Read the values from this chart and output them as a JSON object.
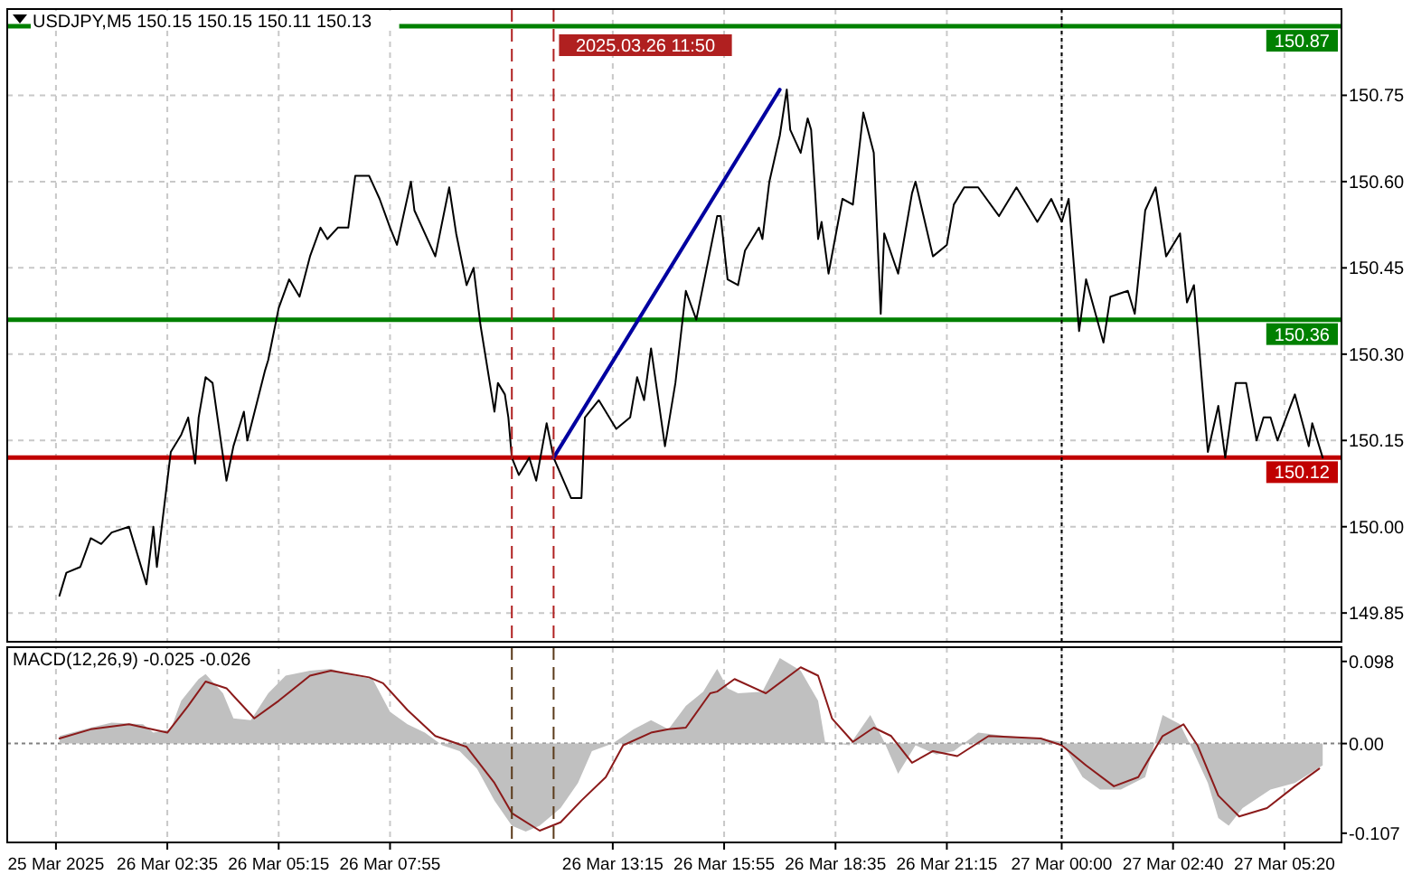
{
  "chart_data": [
    {
      "type": "line",
      "title": "USDJPY,M5 150.15 150.15 150.11 150.13",
      "xlim": [
        "2025-03-25T22:45",
        "2025-03-27T06:42"
      ],
      "ylim": [
        149.8,
        150.9
      ],
      "xticks": [
        {
          "value": "2025-03-25T23:55",
          "label": null
        },
        {
          "value": "2025-03-26T02:35",
          "label": null
        },
        {
          "value": "2025-03-26T05:15",
          "label": null
        },
        {
          "value": "2025-03-26T07:55",
          "label": null
        },
        {
          "value": "2025-03-26T13:15",
          "label": null
        },
        {
          "value": "2025-03-26T15:55",
          "label": null
        },
        {
          "value": "2025-03-26T18:35",
          "label": null
        },
        {
          "value": "2025-03-26T21:15",
          "label": null
        },
        {
          "value": "2025-03-27T00:00",
          "label": null
        },
        {
          "value": "2025-03-27T02:40",
          "label": null
        },
        {
          "value": "2025-03-27T05:20",
          "label": null
        }
      ],
      "yticks": [
        149.85,
        {
          "value": 150,
          "label": "150.00"
        },
        150.15,
        {
          "value": 150.3,
          "label": "150.30"
        },
        150.45,
        {
          "value": 150.6,
          "label": "150.60"
        },
        150.75
      ],
      "tick_labels": "y",
      "grid": true,
      "series": [
        {
          "color": "#000000",
          "x": [
            "2025-03-26T00:00",
            "2025-03-26T00:10",
            "2025-03-26T00:30",
            "2025-03-26T00:45",
            "2025-03-26T01:00",
            "2025-03-26T01:15",
            "2025-03-26T01:40",
            "2025-03-26T02:05",
            "2025-03-26T02:15",
            "2025-03-26T02:20",
            "2025-03-26T02:40",
            "2025-03-26T02:55",
            "2025-03-26T03:05",
            "2025-03-26T03:15",
            "2025-03-26T03:20",
            "2025-03-26T03:30",
            "2025-03-26T03:40",
            "2025-03-26T04:00",
            "2025-03-26T04:10",
            "2025-03-26T04:25",
            "2025-03-26T04:30",
            "2025-03-26T04:55",
            "2025-03-26T05:00",
            "2025-03-26T05:15",
            "2025-03-26T05:30",
            "2025-03-26T05:45",
            "2025-03-26T06:00",
            "2025-03-26T06:15",
            "2025-03-26T06:25",
            "2025-03-26T06:40",
            "2025-03-26T06:55",
            "2025-03-26T07:05",
            "2025-03-26T07:25",
            "2025-03-26T07:40",
            "2025-03-26T07:55",
            "2025-03-26T08:05",
            "2025-03-26T08:25",
            "2025-03-26T08:30",
            "2025-03-26T09:00",
            "2025-03-26T09:20",
            "2025-03-26T09:30",
            "2025-03-26T09:45",
            "2025-03-26T09:55",
            "2025-03-26T10:05",
            "2025-03-26T10:25",
            "2025-03-26T10:30",
            "2025-03-26T10:40",
            "2025-03-26T10:45",
            "2025-03-26T10:50",
            "2025-03-26T11:00",
            "2025-03-26T11:15",
            "2025-03-26T11:25",
            "2025-03-26T11:40",
            "2025-03-26T11:50",
            "2025-03-26T12:15",
            "2025-03-26T12:30",
            "2025-03-26T12:35",
            "2025-03-26T12:55",
            "2025-03-26T13:20",
            "2025-03-26T13:40",
            "2025-03-26T13:50",
            "2025-03-26T14:00",
            "2025-03-26T14:10",
            "2025-03-26T14:30",
            "2025-03-26T14:45",
            "2025-03-26T15:00",
            "2025-03-26T15:15",
            "2025-03-26T15:45",
            "2025-03-26T15:50",
            "2025-03-26T16:00",
            "2025-03-26T16:15",
            "2025-03-26T16:25",
            "2025-03-26T16:45",
            "2025-03-26T16:50",
            "2025-03-26T17:00",
            "2025-03-26T17:15",
            "2025-03-26T17:25",
            "2025-03-26T17:30",
            "2025-03-26T17:45",
            "2025-03-26T17:55",
            "2025-03-26T18:00",
            "2025-03-26T18:10",
            "2025-03-26T18:15",
            "2025-03-26T18:25",
            "2025-03-26T18:45",
            "2025-03-26T19:00",
            "2025-03-26T19:15",
            "2025-03-26T19:30",
            "2025-03-26T19:40",
            "2025-03-26T19:45",
            "2025-03-26T20:05",
            "2025-03-26T20:25",
            "2025-03-26T20:30",
            "2025-03-26T20:55",
            "2025-03-26T21:15",
            "2025-03-26T21:25",
            "2025-03-26T21:40",
            "2025-03-26T22:00",
            "2025-03-26T22:30",
            "2025-03-26T22:55",
            "2025-03-26T23:25",
            "2025-03-26T23:45",
            "2025-03-27T00:00",
            "2025-03-27T00:10",
            "2025-03-27T00:25",
            "2025-03-27T00:35",
            "2025-03-27T01:00",
            "2025-03-27T01:10",
            "2025-03-27T01:35",
            "2025-03-27T01:45",
            "2025-03-27T02:00",
            "2025-03-27T02:15",
            "2025-03-27T02:30",
            "2025-03-27T02:50",
            "2025-03-27T03:00",
            "2025-03-27T03:10",
            "2025-03-27T03:30",
            "2025-03-27T03:45",
            "2025-03-27T03:55",
            "2025-03-27T04:10",
            "2025-03-27T04:25",
            "2025-03-27T04:40",
            "2025-03-27T04:50",
            "2025-03-27T05:00",
            "2025-03-27T05:10",
            "2025-03-27T05:35",
            "2025-03-27T05:55",
            "2025-03-27T06:00",
            "2025-03-27T06:15"
          ],
          "values": [
            149.88,
            149.92,
            149.93,
            149.98,
            149.97,
            149.99,
            150.0,
            149.9,
            150.0,
            149.93,
            150.13,
            150.16,
            150.19,
            150.11,
            150.19,
            150.26,
            150.25,
            150.08,
            150.14,
            150.2,
            150.15,
            150.27,
            150.29,
            150.38,
            150.43,
            150.4,
            150.47,
            150.52,
            150.5,
            150.52,
            150.52,
            150.61,
            150.61,
            150.57,
            150.52,
            150.49,
            150.6,
            150.55,
            150.47,
            150.59,
            150.51,
            150.42,
            150.45,
            150.35,
            150.2,
            150.25,
            150.23,
            150.19,
            150.12,
            150.09,
            150.12,
            150.08,
            150.18,
            150.12,
            150.05,
            150.05,
            150.19,
            150.22,
            150.17,
            150.19,
            150.26,
            150.22,
            150.31,
            150.14,
            150.25,
            150.41,
            150.36,
            150.54,
            150.54,
            150.43,
            150.42,
            150.48,
            150.52,
            150.5,
            150.6,
            150.68,
            150.76,
            150.69,
            150.65,
            150.71,
            150.69,
            150.5,
            150.53,
            150.44,
            150.57,
            150.56,
            150.72,
            150.65,
            150.37,
            150.51,
            150.44,
            150.58,
            150.6,
            150.47,
            150.49,
            150.56,
            150.59,
            150.59,
            150.54,
            150.59,
            150.53,
            150.57,
            150.53,
            150.57,
            150.34,
            150.43,
            150.32,
            150.4,
            150.41,
            150.37,
            150.55,
            150.59,
            150.47,
            150.51,
            150.39,
            150.42,
            150.13,
            150.21,
            150.12,
            150.25,
            150.25,
            150.15,
            150.19,
            150.19,
            150.15,
            150.23,
            150.14,
            150.18,
            150.12
          ]
        },
        {
          "type": "line",
          "color": "#0000a0",
          "x": [
            "2025-03-26T11:50",
            "2025-03-26T17:15"
          ],
          "values": [
            150.12,
            150.76
          ]
        }
      ],
      "ref_lines": [
        {
          "axis": "y",
          "value": 150.87,
          "label": "150.87",
          "color": "#008000"
        },
        {
          "axis": "y",
          "value": 150.36,
          "label": "150.36",
          "color": "#008000"
        },
        {
          "axis": "y",
          "value": 150.12,
          "label": "150.12",
          "color": "#c00000"
        },
        {
          "axis": "x",
          "value": "2025-03-26T10:50",
          "color": "#b02020",
          "line_style": "dashed"
        },
        {
          "axis": "x",
          "value": "2025-03-26T11:50",
          "label": "2025.03.26 11:50",
          "color": "#b02020",
          "line_style": "dashed"
        },
        {
          "axis": "x",
          "value": "2025-03-27T00:00",
          "color": "#000000",
          "line_style": "dotted"
        }
      ]
    },
    {
      "type": "area",
      "title": "MACD(12,26,9) -0.025 -0.026",
      "xlim": [
        "2025-03-25T22:45",
        "2025-03-27T06:42"
      ],
      "ylim": [
        -0.118,
        0.115
      ],
      "xticks": [
        {
          "value": "2025-03-25T23:55",
          "label": "25 Mar 2025"
        },
        {
          "value": "2025-03-26T02:35",
          "label": "26 Mar 02:35"
        },
        {
          "value": "2025-03-26T05:15",
          "label": "26 Mar 05:15"
        },
        {
          "value": "2025-03-26T07:55",
          "label": "26 Mar 07:55"
        },
        {
          "value": "2025-03-26T13:15",
          "label": "26 Mar 13:15"
        },
        {
          "value": "2025-03-26T15:55",
          "label": "26 Mar 15:55"
        },
        {
          "value": "2025-03-26T18:35",
          "label": "26 Mar 18:35"
        },
        {
          "value": "2025-03-26T21:15",
          "label": "26 Mar 21:15"
        },
        {
          "value": "2025-03-27T00:00",
          "label": "27 Mar 00:00"
        },
        {
          "value": "2025-03-27T02:40",
          "label": "27 Mar 02:40"
        },
        {
          "value": "2025-03-27T05:20",
          "label": "27 Mar 05:20"
        }
      ],
      "yticks": [
        -0.107,
        {
          "value": 0,
          "label": "0.00"
        },
        0.098
      ],
      "grid": "x",
      "series": [
        {
          "color": "#c0c0c0",
          "x": [
            "2025-03-26T00:00",
            "2025-03-26T00:45",
            "2025-03-26T01:15",
            "2025-03-26T02:00",
            "2025-03-26T02:15",
            "2025-03-26T02:40",
            "2025-03-26T02:55",
            "2025-03-26T03:20",
            "2025-03-26T03:30",
            "2025-03-26T03:55",
            "2025-03-26T04:10",
            "2025-03-26T04:35",
            "2025-03-26T05:00",
            "2025-03-26T05:25",
            "2025-03-26T06:00",
            "2025-03-26T06:30",
            "2025-03-26T07:05",
            "2025-03-26T07:30",
            "2025-03-26T07:55",
            "2025-03-26T08:20",
            "2025-03-26T08:45",
            "2025-03-26T09:10",
            "2025-03-26T09:35",
            "2025-03-26T10:00",
            "2025-03-26T10:25",
            "2025-03-26T10:50",
            "2025-03-26T11:10",
            "2025-03-26T11:30",
            "2025-03-26T12:00",
            "2025-03-26T12:25",
            "2025-03-26T12:45",
            "2025-03-26T13:15",
            "2025-03-26T13:45",
            "2025-03-26T14:10",
            "2025-03-26T14:35",
            "2025-03-26T15:00",
            "2025-03-26T15:25",
            "2025-03-26T15:45",
            "2025-03-26T16:00",
            "2025-03-26T16:15",
            "2025-03-26T16:50",
            "2025-03-26T17:15",
            "2025-03-26T17:45",
            "2025-03-26T18:10",
            "2025-03-26T18:20",
            "2025-03-26T18:55",
            "2025-03-26T19:25",
            "2025-03-26T19:45",
            "2025-03-26T20:05",
            "2025-03-26T20:30",
            "2025-03-26T21:00",
            "2025-03-26T21:25",
            "2025-03-26T22:00",
            "2025-03-26T22:40",
            "2025-03-26T23:30",
            "2025-03-27T00:00",
            "2025-03-27T00:30",
            "2025-03-27T00:55",
            "2025-03-27T01:25",
            "2025-03-27T02:00",
            "2025-03-27T02:25",
            "2025-03-27T02:50",
            "2025-03-27T03:05",
            "2025-03-27T03:30",
            "2025-03-27T03:45",
            "2025-03-27T04:00",
            "2025-03-27T04:20",
            "2025-03-27T05:00",
            "2025-03-27T05:35",
            "2025-03-27T06:15"
          ],
          "values": [
            0.009,
            0.019,
            0.025,
            0.023,
            0.013,
            0.017,
            0.051,
            0.077,
            0.083,
            0.06,
            0.03,
            0.028,
            0.06,
            0.081,
            0.087,
            0.089,
            0.081,
            0.077,
            0.038,
            0.023,
            0.013,
            -0.002,
            -0.009,
            -0.03,
            -0.068,
            -0.098,
            -0.105,
            -0.098,
            -0.077,
            -0.047,
            -0.009,
            0,
            0.017,
            0.028,
            0.017,
            0.045,
            0.062,
            0.089,
            0.066,
            0.06,
            0.062,
            0.102,
            0.087,
            0.051,
            0.002,
            -0.002,
            0.034,
            0.002,
            -0.036,
            -0.002,
            -0.013,
            -0.009,
            0.013,
            0.009,
            0.006,
            0.002,
            -0.04,
            -0.055,
            -0.055,
            -0.04,
            0.034,
            0.023,
            -0.002,
            -0.047,
            -0.089,
            -0.098,
            -0.077,
            -0.055,
            -0.047,
            -0.026
          ]
        },
        {
          "type": "line",
          "color": "#8b1a1a",
          "x": [
            "2025-03-26T00:00",
            "2025-03-26T00:45",
            "2025-03-26T01:40",
            "2025-03-26T02:35",
            "2025-03-26T03:05",
            "2025-03-26T03:30",
            "2025-03-26T04:00",
            "2025-03-26T04:40",
            "2025-03-26T05:15",
            "2025-03-26T06:00",
            "2025-03-26T06:30",
            "2025-03-26T07:25",
            "2025-03-26T07:45",
            "2025-03-26T08:20",
            "2025-03-26T09:00",
            "2025-03-26T09:45",
            "2025-03-26T10:25",
            "2025-03-26T10:50",
            "2025-03-26T11:30",
            "2025-03-26T12:00",
            "2025-03-26T12:30",
            "2025-03-26T13:05",
            "2025-03-26T13:30",
            "2025-03-26T14:10",
            "2025-03-26T14:35",
            "2025-03-26T15:00",
            "2025-03-26T15:35",
            "2025-03-26T15:45",
            "2025-03-26T16:10",
            "2025-03-26T16:55",
            "2025-03-26T17:45",
            "2025-03-26T18:10",
            "2025-03-26T18:30",
            "2025-03-26T19:00",
            "2025-03-26T19:30",
            "2025-03-26T19:55",
            "2025-03-26T20:25",
            "2025-03-26T20:55",
            "2025-03-26T21:30",
            "2025-03-26T22:15",
            "2025-03-26T23:30",
            "2025-03-27T00:00",
            "2025-03-27T00:35",
            "2025-03-27T01:15",
            "2025-03-27T01:50",
            "2025-03-27T02:25",
            "2025-03-27T02:55",
            "2025-03-27T03:15",
            "2025-03-27T03:45",
            "2025-03-27T04:15",
            "2025-03-27T04:55",
            "2025-03-27T05:35",
            "2025-03-27T06:10"
          ],
          "values": [
            0.006,
            0.017,
            0.023,
            0.013,
            0.045,
            0.074,
            0.066,
            0.03,
            0.051,
            0.081,
            0.087,
            0.079,
            0.072,
            0.04,
            0.009,
            -0.004,
            -0.047,
            -0.083,
            -0.104,
            -0.094,
            -0.068,
            -0.04,
            -0.002,
            0.013,
            0.017,
            0.019,
            0.06,
            0.062,
            0.077,
            0.06,
            0.091,
            0.081,
            0.03,
            0.002,
            0.019,
            0.009,
            -0.023,
            -0.009,
            -0.015,
            0.009,
            0.006,
            -0.002,
            -0.026,
            -0.051,
            -0.04,
            0.009,
            0.023,
            -0.002,
            -0.062,
            -0.087,
            -0.077,
            -0.051,
            -0.03
          ]
        }
      ],
      "ref_lines": [
        {
          "axis": "y",
          "value": 0,
          "color": "#808080",
          "line_style": "dotted"
        },
        {
          "axis": "x",
          "value": "2025-03-26T10:50",
          "color": "#5a3a1a",
          "line_style": "dashed"
        },
        {
          "axis": "x",
          "value": "2025-03-26T11:50",
          "color": "#5a3a1a",
          "line_style": "dashed"
        },
        {
          "axis": "x",
          "value": "2025-03-27T00:00",
          "color": "#000000",
          "line_style": "dotted"
        }
      ]
    }
  ]
}
